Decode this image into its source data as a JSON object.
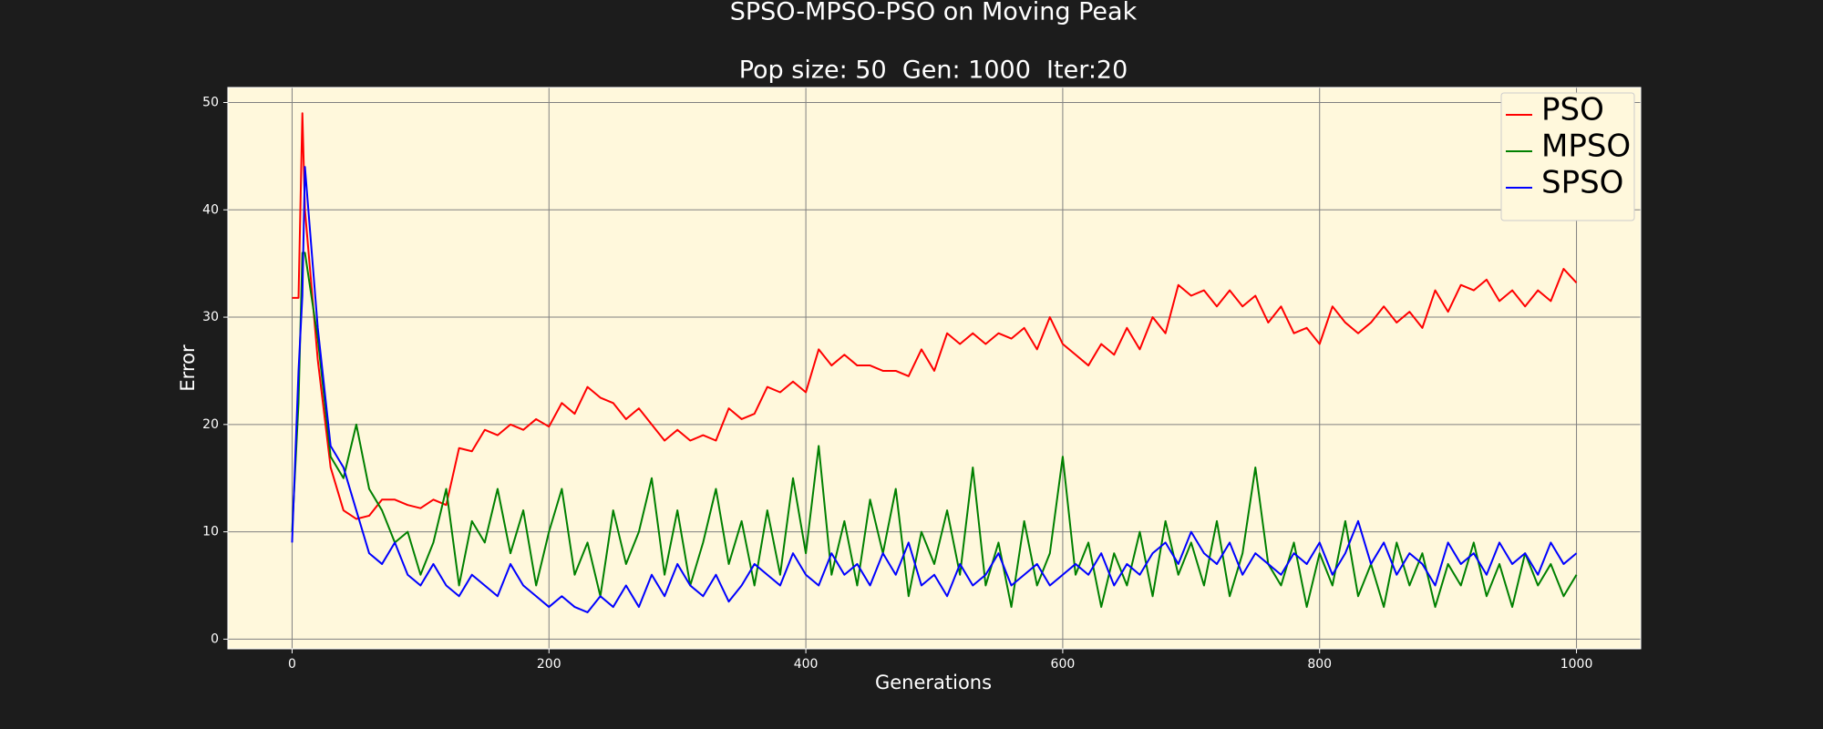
{
  "chart_data": {
    "type": "line",
    "title": "SPSO-MPSO-PSO on Moving Peak",
    "subtitle": "Pop size: 50  Gen: 1000  Iter:20",
    "x_label": "Generations",
    "y_label": "Error",
    "x": [
      0,
      5,
      8,
      10,
      20,
      30,
      40,
      50,
      60,
      70,
      80,
      90,
      100,
      110,
      120,
      130,
      140,
      150,
      160,
      170,
      180,
      190,
      200,
      210,
      220,
      230,
      240,
      250,
      260,
      270,
      280,
      290,
      300,
      310,
      320,
      330,
      340,
      350,
      360,
      370,
      380,
      390,
      400,
      410,
      420,
      430,
      440,
      450,
      460,
      470,
      480,
      490,
      500,
      510,
      520,
      530,
      540,
      550,
      560,
      570,
      580,
      590,
      600,
      610,
      620,
      630,
      640,
      650,
      660,
      670,
      680,
      690,
      700,
      710,
      720,
      730,
      740,
      750,
      760,
      770,
      780,
      790,
      800,
      810,
      820,
      830,
      840,
      850,
      860,
      870,
      880,
      890,
      900,
      910,
      920,
      930,
      940,
      950,
      960,
      970,
      980,
      990,
      1000
    ],
    "series": [
      {
        "name": "PSO",
        "color": "#ff0000",
        "values": [
          31.8,
          31.8,
          49,
          40,
          26,
          16,
          12,
          11.2,
          11.5,
          13,
          13,
          12.5,
          12.2,
          13,
          12.5,
          17.8,
          17.5,
          19.5,
          19,
          20,
          19.5,
          20.5,
          19.8,
          22,
          21,
          23.5,
          22.5,
          22,
          20.5,
          21.5,
          20,
          18.5,
          19.5,
          18.5,
          19,
          18.5,
          21.5,
          20.5,
          21,
          23.5,
          23,
          24,
          23,
          27,
          25.5,
          26.5,
          25.5,
          25.5,
          25,
          25,
          24.5,
          27,
          25,
          28.5,
          27.5,
          28.5,
          27.5,
          28.5,
          28,
          29,
          27,
          30,
          27.5,
          26.5,
          25.5,
          27.5,
          26.5,
          29,
          27,
          30,
          28.5,
          33,
          32,
          32.5,
          31,
          32.5,
          31,
          32,
          29.5,
          31,
          28.5,
          29,
          27.5,
          31,
          29.5,
          28.5,
          29.5,
          31,
          29.5,
          30.5,
          29,
          32.5,
          30.5,
          33,
          32.5,
          33.5,
          31.5,
          32.5,
          31,
          32.5,
          31.5,
          34.5,
          33.2
        ]
      },
      {
        "name": "MPSO",
        "color": "#008000",
        "values": [
          10,
          22,
          36,
          36,
          28,
          17,
          15,
          20,
          14,
          12,
          9,
          10,
          6,
          9,
          14,
          5,
          11,
          9,
          14,
          8,
          12,
          5,
          10,
          14,
          6,
          9,
          4,
          12,
          7,
          10,
          15,
          6,
          12,
          5,
          9,
          14,
          7,
          11,
          5,
          12,
          6,
          15,
          8,
          18,
          6,
          11,
          5,
          13,
          8,
          14,
          4,
          10,
          7,
          12,
          6,
          16,
          5,
          9,
          3,
          11,
          5,
          8,
          17,
          6,
          9,
          3,
          8,
          5,
          10,
          4,
          11,
          6,
          9,
          5,
          11,
          4,
          8,
          16,
          7,
          5,
          9,
          3,
          8,
          5,
          11,
          4,
          7,
          3,
          9,
          5,
          8,
          3,
          7,
          5,
          9,
          4,
          7,
          3,
          8,
          5,
          7,
          4,
          6
        ]
      },
      {
        "name": "SPSO",
        "color": "#0000ff",
        "values": [
          9,
          25,
          32,
          44,
          29,
          18,
          16,
          12,
          8,
          7,
          9,
          6,
          5,
          7,
          5,
          4,
          6,
          5,
          4,
          7,
          5,
          4,
          3,
          4,
          3,
          2.5,
          4,
          3,
          5,
          3,
          6,
          4,
          7,
          5,
          4,
          6,
          3.5,
          5,
          7,
          6,
          5,
          8,
          6,
          5,
          8,
          6,
          7,
          5,
          8,
          6,
          9,
          5,
          6,
          4,
          7,
          5,
          6,
          8,
          5,
          6,
          7,
          5,
          6,
          7,
          6,
          8,
          5,
          7,
          6,
          8,
          9,
          7,
          10,
          8,
          7,
          9,
          6,
          8,
          7,
          6,
          8,
          7,
          9,
          6,
          8,
          11,
          7,
          9,
          6,
          8,
          7,
          5,
          9,
          7,
          8,
          6,
          9,
          7,
          8,
          6,
          9,
          7,
          8
        ]
      }
    ],
    "xlim": [
      -50,
      1050
    ],
    "ylim": [
      -0.9,
      51.4
    ],
    "xticks": [
      0,
      200,
      400,
      600,
      800,
      1000
    ],
    "yticks": [
      0,
      10,
      20,
      30,
      40,
      50
    ],
    "grid": true,
    "legend": "upper right",
    "background": "#1c1c1c",
    "plot_background": "#fff8dc"
  }
}
